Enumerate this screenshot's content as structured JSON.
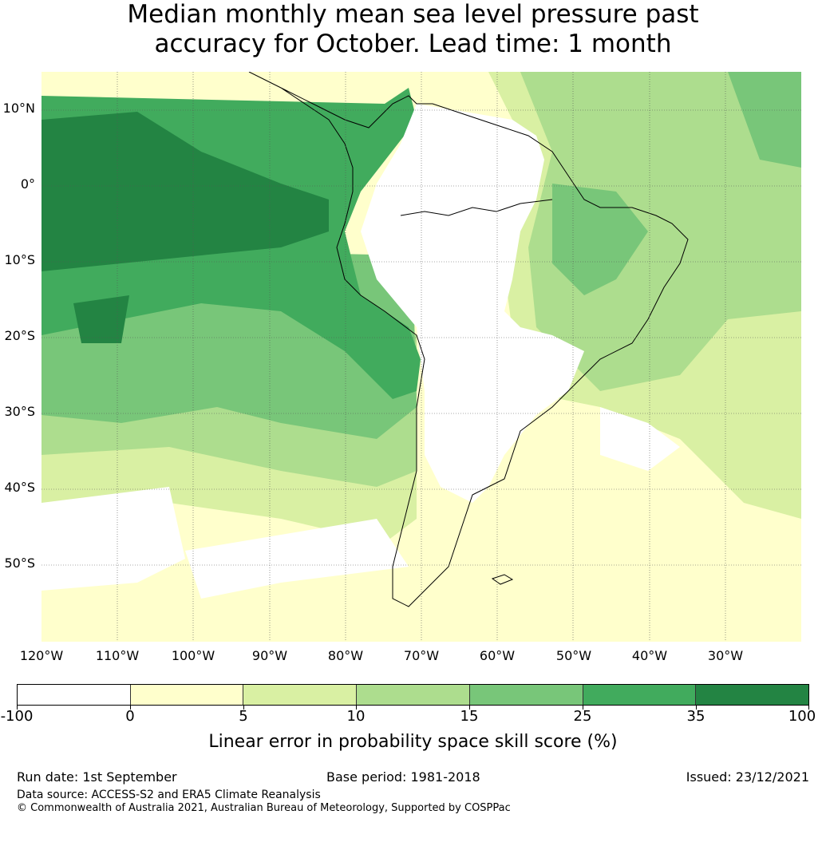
{
  "title_line1": "Median monthly mean sea level pressure past",
  "title_line2": "accuracy for October. Lead time: 1 month",
  "map": {
    "lat_labels": [
      "10°N",
      "0°",
      "10°S",
      "20°S",
      "30°S",
      "40°S",
      "50°S"
    ],
    "lon_labels": [
      "120°W",
      "110°W",
      "100°W",
      "90°W",
      "80°W",
      "70°W",
      "60°W",
      "50°W",
      "40°W",
      "30°W"
    ],
    "extent": {
      "lon_min": -120,
      "lon_max": -20,
      "lat_min": -60,
      "lat_max": 15
    },
    "region": "South America"
  },
  "colorbar": {
    "label": "Linear error in probability space skill score (%)",
    "ticks": [
      "-100",
      "0",
      "5",
      "10",
      "15",
      "25",
      "35",
      "100"
    ],
    "colors": [
      "#ffffff",
      "#ffffcc",
      "#d9f0a3",
      "#addd8e",
      "#78c679",
      "#41ab5d",
      "#238443"
    ]
  },
  "footer": {
    "run_date": "Run date: 1st September",
    "base_period": "Base period: 1981-2018",
    "issued": "Issued: 23/12/2021",
    "data_source": "Data source: ACCESS-S2 and ERA5 Climate Reanalysis",
    "copyright": "© Commonwealth of Australia 2021, Australian Bureau of Meteorology, Supported by COSPPac"
  }
}
